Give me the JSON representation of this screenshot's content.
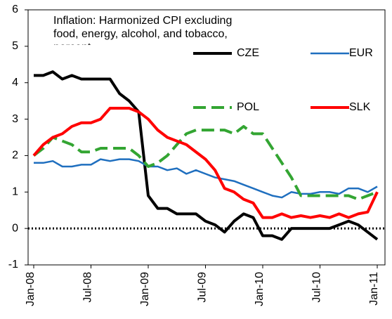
{
  "chart_data": {
    "type": "line",
    "title": "Inflation: Harmonized CPI excluding food, energy, alcohol, and tobacco, percent",
    "categories": [
      "Jan-08",
      null,
      null,
      null,
      null,
      null,
      "Jul-08",
      null,
      null,
      null,
      null,
      null,
      "Jan-09",
      null,
      null,
      null,
      null,
      null,
      "Jul-09",
      null,
      null,
      null,
      null,
      null,
      "Jan-10",
      null,
      null,
      null,
      null,
      null,
      "Jul-10",
      null,
      null,
      null,
      null,
      null,
      "Jan-11"
    ],
    "series": [
      {
        "name": "CZE",
        "color": "#000000",
        "dash": false,
        "values": [
          4.2,
          4.2,
          4.3,
          4.1,
          4.2,
          4.1,
          4.1,
          4.1,
          4.1,
          3.7,
          3.5,
          3.2,
          0.9,
          0.55,
          0.55,
          0.4,
          0.4,
          0.4,
          0.2,
          0.1,
          -0.1,
          0.2,
          0.4,
          0.3,
          -0.2,
          -0.2,
          -0.3,
          0.0,
          0.0,
          0.0,
          0.0,
          0.0,
          0.1,
          0.2,
          0.1,
          -0.1,
          -0.3
        ]
      },
      {
        "name": "EUR",
        "color": "#1f6fbf",
        "dash": false,
        "values": [
          1.8,
          1.8,
          1.85,
          1.7,
          1.7,
          1.75,
          1.75,
          1.9,
          1.85,
          1.9,
          1.9,
          1.85,
          1.7,
          1.7,
          1.6,
          1.65,
          1.5,
          1.6,
          1.5,
          1.4,
          1.35,
          1.3,
          1.2,
          1.1,
          1.0,
          0.9,
          0.85,
          1.0,
          0.95,
          0.95,
          1.0,
          1.0,
          0.95,
          1.1,
          1.1,
          1.0,
          1.15
        ]
      },
      {
        "name": "POL",
        "color": "#33a532",
        "dash": true,
        "values": [
          2.0,
          2.2,
          2.5,
          2.4,
          2.3,
          2.1,
          2.1,
          2.2,
          2.2,
          2.2,
          2.2,
          2.0,
          1.7,
          1.8,
          2.0,
          2.3,
          2.6,
          2.7,
          2.7,
          2.7,
          2.7,
          2.6,
          2.8,
          2.6,
          2.6,
          2.2,
          1.8,
          1.4,
          0.9,
          0.9,
          0.9,
          0.9,
          0.9,
          0.9,
          0.8,
          0.9,
          1.0
        ]
      },
      {
        "name": "SLK",
        "color": "#ff0000",
        "dash": false,
        "values": [
          2.0,
          2.3,
          2.5,
          2.6,
          2.8,
          2.9,
          2.9,
          3.0,
          3.3,
          3.3,
          3.3,
          3.2,
          3.0,
          2.7,
          2.5,
          2.4,
          2.3,
          2.1,
          1.9,
          1.6,
          1.1,
          1.0,
          0.8,
          0.7,
          0.3,
          0.3,
          0.4,
          0.3,
          0.35,
          0.3,
          0.35,
          0.3,
          0.4,
          0.3,
          0.4,
          0.45,
          1.0
        ]
      }
    ],
    "ylim": [
      -1,
      6
    ],
    "yticks": [
      -1,
      0,
      1,
      2,
      3,
      4,
      5,
      6
    ],
    "grid": false,
    "zero_line": true
  }
}
